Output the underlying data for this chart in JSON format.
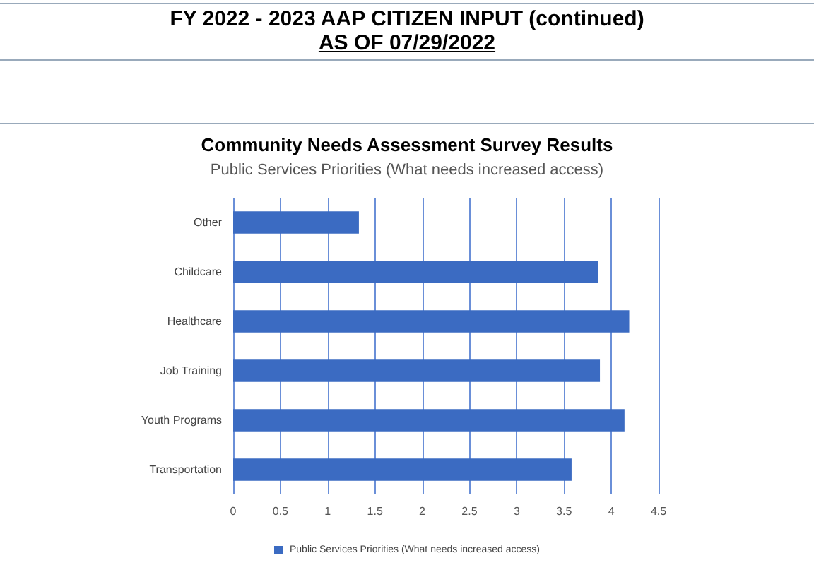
{
  "chart_data": {
    "type": "bar",
    "orientation": "horizontal",
    "title": "FY 2022 - 2023 AAP CITIZEN INPUT (continued)",
    "subtitle": "AS OF 07/29/2022",
    "annotations": [
      "Community Needs Assessment Survey Results",
      "Public Services Priorities (What needs increased access)"
    ],
    "categories": [
      "Other",
      "Childcare",
      "Healthcare",
      "Job Training",
      "Youth Programs",
      "Transportation"
    ],
    "series": [
      {
        "name": "Public Services Priorities (What needs increased access)",
        "color": "#3b6bc2",
        "values": [
          1.33,
          3.86,
          4.19,
          3.88,
          4.14,
          3.58
        ]
      }
    ],
    "xlim": [
      0,
      4.5
    ],
    "xticks": [
      0,
      0.5,
      1,
      1.5,
      2,
      2.5,
      3,
      3.5,
      4,
      4.5
    ],
    "grid": "x",
    "legend": "bottom"
  }
}
